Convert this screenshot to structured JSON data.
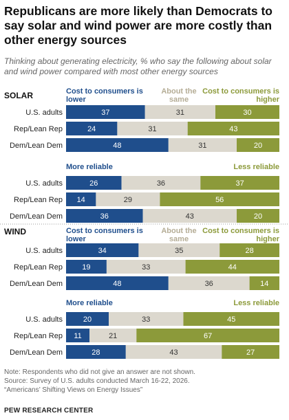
{
  "title": "Republicans are more likely than Democrats to say solar and wind power are more costly than other energy sources",
  "subtitle": "Thinking about generating electricity, % who say the following about solar and wind power compared with most other energy sources",
  "chart_data": {
    "type": "bar",
    "orientation": "horizontal",
    "stacked": true,
    "colors": {
      "dark_blue": "#1f4e8c",
      "beige": "#dcd8ce",
      "olive": "#8c9a3a"
    },
    "sections": [
      {
        "label": "SOLAR",
        "panels": [
          {
            "headers": [
              "Cost to consumers is lower",
              "About the same",
              "Cost to consumers is higher"
            ],
            "categories": [
              "U.S. adults",
              "Rep/Lean Rep",
              "Dem/Lean Dem"
            ],
            "series": [
              {
                "name": "Cost to consumers is lower",
                "values": [
                  37,
                  24,
                  48
                ]
              },
              {
                "name": "About the same",
                "values": [
                  31,
                  31,
                  31
                ]
              },
              {
                "name": "Cost to consumers is higher",
                "values": [
                  30,
                  43,
                  20
                ]
              }
            ]
          },
          {
            "headers": [
              "More reliable",
              "",
              "Less reliable"
            ],
            "categories": [
              "U.S. adults",
              "Rep/Lean Rep",
              "Dem/Lean Dem"
            ],
            "series": [
              {
                "name": "More reliable",
                "values": [
                  26,
                  14,
                  36
                ]
              },
              {
                "name": "",
                "values": [
                  36,
                  29,
                  43
                ]
              },
              {
                "name": "Less reliable",
                "values": [
                  37,
                  56,
                  20
                ]
              }
            ]
          }
        ]
      },
      {
        "label": "WIND",
        "panels": [
          {
            "headers": [
              "Cost to consumers is lower",
              "About the same",
              "Cost to consumers is higher"
            ],
            "categories": [
              "U.S. adults",
              "Rep/Lean Rep",
              "Dem/Lean Dem"
            ],
            "series": [
              {
                "name": "Cost to consumers is lower",
                "values": [
                  34,
                  19,
                  48
                ]
              },
              {
                "name": "About the same",
                "values": [
                  35,
                  33,
                  36
                ]
              },
              {
                "name": "Cost to consumers is higher",
                "values": [
                  28,
                  44,
                  14
                ]
              }
            ]
          },
          {
            "headers": [
              "More reliable",
              "",
              "Less reliable"
            ],
            "categories": [
              "U.S. adults",
              "Rep/Lean Rep",
              "Dem/Lean Dem"
            ],
            "series": [
              {
                "name": "More reliable",
                "values": [
                  20,
                  11,
                  28
                ]
              },
              {
                "name": "",
                "values": [
                  33,
                  21,
                  43
                ]
              },
              {
                "name": "Less reliable",
                "values": [
                  45,
                  67,
                  27
                ]
              }
            ]
          }
        ]
      }
    ]
  },
  "notes": [
    "Note: Respondents who did not give an answer are not shown.",
    "Source: Survey of U.S. adults conducted March 16-22, 2026.",
    "“Americans’ Shifting Views on Energy Issues”"
  ],
  "source_org": "PEW RESEARCH CENTER"
}
